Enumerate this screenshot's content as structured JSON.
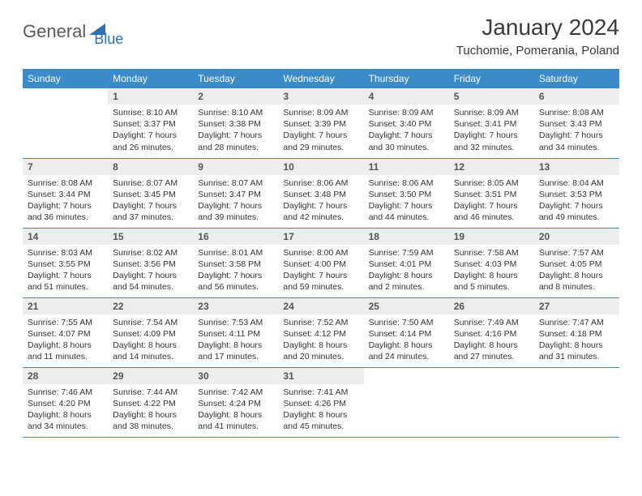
{
  "logo": {
    "text1": "General",
    "text2": "Blue"
  },
  "title": "January 2024",
  "location": "Tuchomie, Pomerania, Poland",
  "colors": {
    "header_bg": "#3b8bc8",
    "header_fg": "#ffffff",
    "daynum_bg": "#ededed",
    "row_border": "#3b8bc8",
    "logo_gray": "#5a5a5a",
    "logo_blue": "#2f6fb3"
  },
  "weekdays": [
    "Sunday",
    "Monday",
    "Tuesday",
    "Wednesday",
    "Thursday",
    "Friday",
    "Saturday"
  ],
  "weeks": [
    [
      null,
      {
        "n": "1",
        "sr": "Sunrise: 8:10 AM",
        "ss": "Sunset: 3:37 PM",
        "d1": "Daylight: 7 hours",
        "d2": "and 26 minutes."
      },
      {
        "n": "2",
        "sr": "Sunrise: 8:10 AM",
        "ss": "Sunset: 3:38 PM",
        "d1": "Daylight: 7 hours",
        "d2": "and 28 minutes."
      },
      {
        "n": "3",
        "sr": "Sunrise: 8:09 AM",
        "ss": "Sunset: 3:39 PM",
        "d1": "Daylight: 7 hours",
        "d2": "and 29 minutes."
      },
      {
        "n": "4",
        "sr": "Sunrise: 8:09 AM",
        "ss": "Sunset: 3:40 PM",
        "d1": "Daylight: 7 hours",
        "d2": "and 30 minutes."
      },
      {
        "n": "5",
        "sr": "Sunrise: 8:09 AM",
        "ss": "Sunset: 3:41 PM",
        "d1": "Daylight: 7 hours",
        "d2": "and 32 minutes."
      },
      {
        "n": "6",
        "sr": "Sunrise: 8:08 AM",
        "ss": "Sunset: 3:43 PM",
        "d1": "Daylight: 7 hours",
        "d2": "and 34 minutes."
      }
    ],
    [
      {
        "n": "7",
        "sr": "Sunrise: 8:08 AM",
        "ss": "Sunset: 3:44 PM",
        "d1": "Daylight: 7 hours",
        "d2": "and 36 minutes."
      },
      {
        "n": "8",
        "sr": "Sunrise: 8:07 AM",
        "ss": "Sunset: 3:45 PM",
        "d1": "Daylight: 7 hours",
        "d2": "and 37 minutes."
      },
      {
        "n": "9",
        "sr": "Sunrise: 8:07 AM",
        "ss": "Sunset: 3:47 PM",
        "d1": "Daylight: 7 hours",
        "d2": "and 39 minutes."
      },
      {
        "n": "10",
        "sr": "Sunrise: 8:06 AM",
        "ss": "Sunset: 3:48 PM",
        "d1": "Daylight: 7 hours",
        "d2": "and 42 minutes."
      },
      {
        "n": "11",
        "sr": "Sunrise: 8:06 AM",
        "ss": "Sunset: 3:50 PM",
        "d1": "Daylight: 7 hours",
        "d2": "and 44 minutes."
      },
      {
        "n": "12",
        "sr": "Sunrise: 8:05 AM",
        "ss": "Sunset: 3:51 PM",
        "d1": "Daylight: 7 hours",
        "d2": "and 46 minutes."
      },
      {
        "n": "13",
        "sr": "Sunrise: 8:04 AM",
        "ss": "Sunset: 3:53 PM",
        "d1": "Daylight: 7 hours",
        "d2": "and 49 minutes."
      }
    ],
    [
      {
        "n": "14",
        "sr": "Sunrise: 8:03 AM",
        "ss": "Sunset: 3:55 PM",
        "d1": "Daylight: 7 hours",
        "d2": "and 51 minutes."
      },
      {
        "n": "15",
        "sr": "Sunrise: 8:02 AM",
        "ss": "Sunset: 3:56 PM",
        "d1": "Daylight: 7 hours",
        "d2": "and 54 minutes."
      },
      {
        "n": "16",
        "sr": "Sunrise: 8:01 AM",
        "ss": "Sunset: 3:58 PM",
        "d1": "Daylight: 7 hours",
        "d2": "and 56 minutes."
      },
      {
        "n": "17",
        "sr": "Sunrise: 8:00 AM",
        "ss": "Sunset: 4:00 PM",
        "d1": "Daylight: 7 hours",
        "d2": "and 59 minutes."
      },
      {
        "n": "18",
        "sr": "Sunrise: 7:59 AM",
        "ss": "Sunset: 4:01 PM",
        "d1": "Daylight: 8 hours",
        "d2": "and 2 minutes."
      },
      {
        "n": "19",
        "sr": "Sunrise: 7:58 AM",
        "ss": "Sunset: 4:03 PM",
        "d1": "Daylight: 8 hours",
        "d2": "and 5 minutes."
      },
      {
        "n": "20",
        "sr": "Sunrise: 7:57 AM",
        "ss": "Sunset: 4:05 PM",
        "d1": "Daylight: 8 hours",
        "d2": "and 8 minutes."
      }
    ],
    [
      {
        "n": "21",
        "sr": "Sunrise: 7:55 AM",
        "ss": "Sunset: 4:07 PM",
        "d1": "Daylight: 8 hours",
        "d2": "and 11 minutes."
      },
      {
        "n": "22",
        "sr": "Sunrise: 7:54 AM",
        "ss": "Sunset: 4:09 PM",
        "d1": "Daylight: 8 hours",
        "d2": "and 14 minutes."
      },
      {
        "n": "23",
        "sr": "Sunrise: 7:53 AM",
        "ss": "Sunset: 4:11 PM",
        "d1": "Daylight: 8 hours",
        "d2": "and 17 minutes."
      },
      {
        "n": "24",
        "sr": "Sunrise: 7:52 AM",
        "ss": "Sunset: 4:12 PM",
        "d1": "Daylight: 8 hours",
        "d2": "and 20 minutes."
      },
      {
        "n": "25",
        "sr": "Sunrise: 7:50 AM",
        "ss": "Sunset: 4:14 PM",
        "d1": "Daylight: 8 hours",
        "d2": "and 24 minutes."
      },
      {
        "n": "26",
        "sr": "Sunrise: 7:49 AM",
        "ss": "Sunset: 4:16 PM",
        "d1": "Daylight: 8 hours",
        "d2": "and 27 minutes."
      },
      {
        "n": "27",
        "sr": "Sunrise: 7:47 AM",
        "ss": "Sunset: 4:18 PM",
        "d1": "Daylight: 8 hours",
        "d2": "and 31 minutes."
      }
    ],
    [
      {
        "n": "28",
        "sr": "Sunrise: 7:46 AM",
        "ss": "Sunset: 4:20 PM",
        "d1": "Daylight: 8 hours",
        "d2": "and 34 minutes."
      },
      {
        "n": "29",
        "sr": "Sunrise: 7:44 AM",
        "ss": "Sunset: 4:22 PM",
        "d1": "Daylight: 8 hours",
        "d2": "and 38 minutes."
      },
      {
        "n": "30",
        "sr": "Sunrise: 7:42 AM",
        "ss": "Sunset: 4:24 PM",
        "d1": "Daylight: 8 hours",
        "d2": "and 41 minutes."
      },
      {
        "n": "31",
        "sr": "Sunrise: 7:41 AM",
        "ss": "Sunset: 4:26 PM",
        "d1": "Daylight: 8 hours",
        "d2": "and 45 minutes."
      },
      null,
      null,
      null
    ]
  ]
}
